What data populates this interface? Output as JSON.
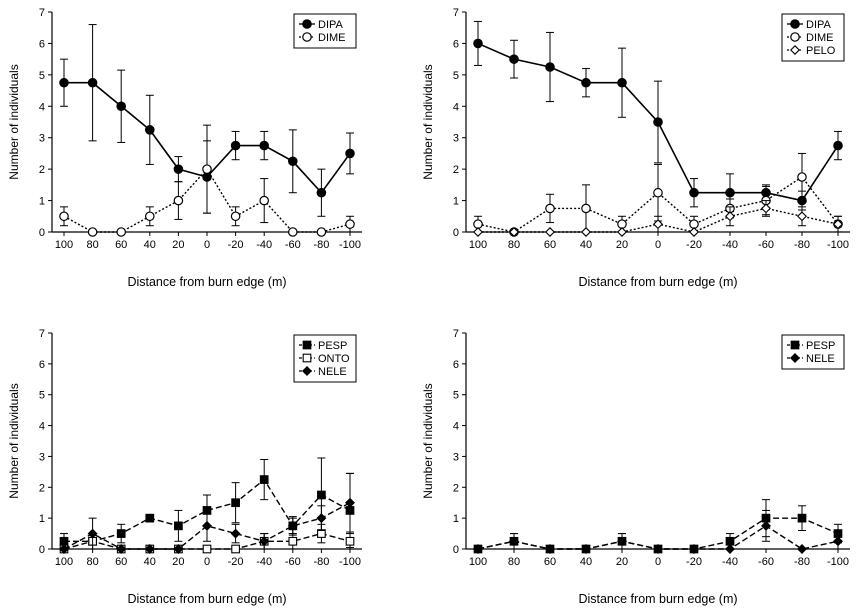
{
  "chart_data": [
    {
      "type": "line",
      "categories": [
        "100",
        "80",
        "60",
        "40",
        "20",
        "0",
        "-20",
        "-40",
        "-60",
        "-80",
        "-100"
      ],
      "ylabel": "Number of individuals",
      "xlabel": "Distance from burn edge (m)",
      "ylim": [
        0,
        7
      ],
      "yticks": [
        "0",
        "1",
        "2",
        "3",
        "4",
        "5",
        "6",
        "7"
      ],
      "legend_position": "top-right",
      "series": [
        {
          "name": "DIPA",
          "marker": "filled-circle",
          "line": "solid",
          "values": [
            4.75,
            4.75,
            4.0,
            3.25,
            2.0,
            1.75,
            2.75,
            2.75,
            2.25,
            1.25,
            2.5
          ],
          "errors": [
            0.75,
            1.85,
            1.15,
            1.1,
            0.4,
            1.15,
            0.45,
            0.45,
            1.0,
            0.75,
            0.65
          ]
        },
        {
          "name": "DIME",
          "marker": "open-circle",
          "line": "dotted",
          "values": [
            0.5,
            0.0,
            0.0,
            0.5,
            1.0,
            2.0,
            0.5,
            1.0,
            0.0,
            0.0,
            0.25
          ],
          "errors": [
            0.3,
            0,
            0,
            0.3,
            0.6,
            1.4,
            0.3,
            0.7,
            0,
            0,
            0.25
          ]
        }
      ]
    },
    {
      "type": "line",
      "categories": [
        "100",
        "80",
        "60",
        "40",
        "20",
        "0",
        "-20",
        "-40",
        "-60",
        "-80",
        "-100"
      ],
      "ylabel": "Number of individuals",
      "xlabel": "Distance from burn edge (m)",
      "ylim": [
        0,
        7
      ],
      "yticks": [
        "0",
        "1",
        "2",
        "3",
        "4",
        "5",
        "6",
        "7"
      ],
      "legend_position": "top-right",
      "series": [
        {
          "name": "DIPA",
          "marker": "filled-circle",
          "line": "solid",
          "values": [
            6.0,
            5.5,
            5.25,
            4.75,
            4.75,
            3.5,
            1.25,
            1.25,
            1.25,
            1.0,
            2.75
          ],
          "errors": [
            0.7,
            0.6,
            1.1,
            0.45,
            1.1,
            1.3,
            0.45,
            0.6,
            0.25,
            0.3,
            0.45
          ]
        },
        {
          "name": "DIME",
          "marker": "open-circle",
          "line": "dotted",
          "values": [
            0.25,
            0.0,
            0.75,
            0.75,
            0.25,
            1.25,
            0.25,
            0.75,
            1.0,
            1.75,
            0.25
          ],
          "errors": [
            0.25,
            0,
            0.45,
            0.75,
            0.25,
            0.9,
            0.25,
            0.3,
            0.45,
            0.75,
            0.25
          ]
        },
        {
          "name": "PELO",
          "marker": "open-diamond",
          "line": "dotted",
          "values": [
            0.0,
            0.0,
            0.0,
            0.0,
            0.0,
            0.25,
            0.0,
            0.5,
            0.75,
            0.5,
            0.25
          ],
          "errors": [
            0,
            0,
            0,
            0,
            0,
            0.25,
            0,
            0.3,
            0.25,
            0.3,
            0.25
          ]
        }
      ]
    },
    {
      "type": "line",
      "categories": [
        "100",
        "80",
        "60",
        "40",
        "20",
        "0",
        "-20",
        "-40",
        "-60",
        "-80",
        "-100"
      ],
      "ylabel": "Number of individuals",
      "xlabel": "Distance from burn edge (m)",
      "ylim": [
        0,
        7
      ],
      "yticks": [
        "0",
        "1",
        "2",
        "3",
        "4",
        "5",
        "6",
        "7"
      ],
      "legend_position": "top-right",
      "series": [
        {
          "name": "PESP",
          "marker": "filled-square",
          "line": "dashed",
          "values": [
            0.25,
            0.25,
            0.5,
            1.0,
            0.75,
            1.25,
            1.5,
            2.25,
            0.75,
            1.75,
            1.25
          ],
          "errors": [
            0.25,
            0.25,
            0.3,
            0,
            0.5,
            0.5,
            0.65,
            0.65,
            0.25,
            1.2,
            1.2
          ]
        },
        {
          "name": "ONTO",
          "marker": "open-square",
          "line": "dashed",
          "values": [
            0.0,
            0.25,
            0.0,
            0.0,
            0.0,
            0.0,
            0.0,
            0.25,
            0.25,
            0.5,
            0.25
          ],
          "errors": [
            0,
            0,
            0,
            0,
            0,
            0,
            0,
            0.25,
            0.25,
            0.3,
            0.25
          ]
        },
        {
          "name": "NELE",
          "marker": "filled-diamond",
          "line": "dashed",
          "values": [
            0.0,
            0.5,
            0.0,
            0.0,
            0.0,
            0.75,
            0.5,
            0.25,
            0.75,
            1.0,
            1.5
          ],
          "errors": [
            0,
            0.5,
            0,
            0,
            0,
            0.5,
            0.3,
            0.25,
            0.3,
            0.4,
            0.95
          ]
        }
      ]
    },
    {
      "type": "line",
      "categories": [
        "100",
        "80",
        "60",
        "40",
        "20",
        "0",
        "-20",
        "-40",
        "-60",
        "-80",
        "-100"
      ],
      "ylabel": "Number of individuals",
      "xlabel": "Distance from burn edge (m)",
      "ylim": [
        0,
        7
      ],
      "yticks": [
        "0",
        "1",
        "2",
        "3",
        "4",
        "5",
        "6",
        "7"
      ],
      "legend_position": "top-right",
      "series": [
        {
          "name": "PESP",
          "marker": "filled-square",
          "line": "dashed",
          "values": [
            0.0,
            0.25,
            0.0,
            0.0,
            0.25,
            0.0,
            0.0,
            0.25,
            1.0,
            1.0,
            0.5
          ],
          "errors": [
            0,
            0.25,
            0,
            0,
            0.25,
            0,
            0,
            0.25,
            0.6,
            0.4,
            0.3
          ]
        },
        {
          "name": "NELE",
          "marker": "filled-diamond",
          "line": "dashed",
          "values": [
            0.0,
            0.25,
            0.0,
            0.0,
            0.25,
            0.0,
            0.0,
            0.0,
            0.75,
            0.0,
            0.25
          ],
          "errors": [
            0,
            0.25,
            0,
            0,
            0.25,
            0,
            0,
            0,
            0.5,
            0,
            0.25
          ]
        }
      ]
    }
  ]
}
